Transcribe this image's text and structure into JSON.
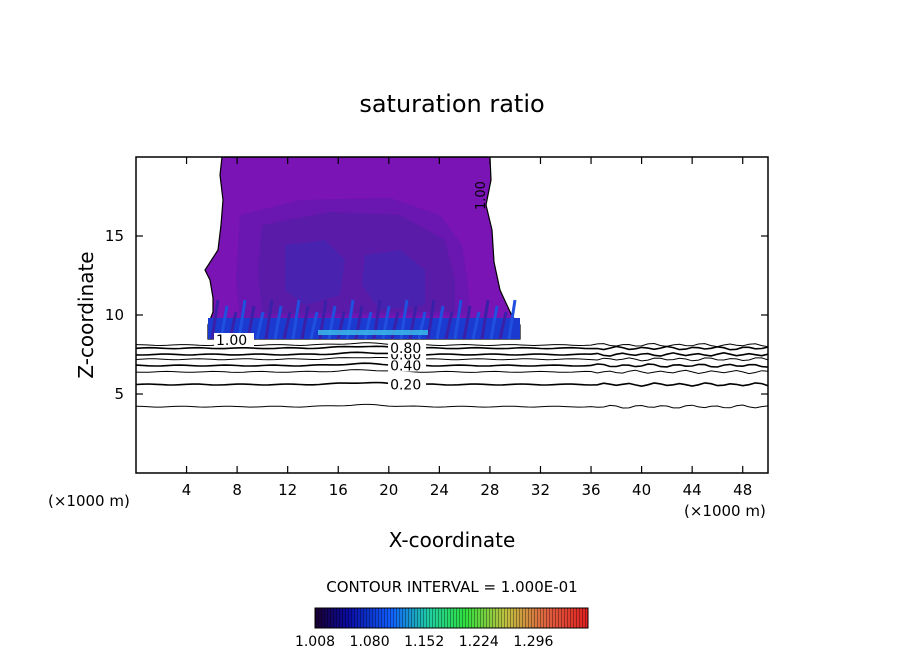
{
  "chart_data": {
    "type": "contour",
    "title": "saturation ratio",
    "xlabel": "X-coordinate",
    "ylabel": "Z-coordinate",
    "x_unit_label": "(×1000 m)",
    "x_unit_label_right": "(×1000 m)",
    "xlim": [
      0,
      50
    ],
    "ylim": [
      0,
      20
    ],
    "x_ticks": [
      4,
      8,
      12,
      16,
      20,
      24,
      28,
      32,
      36,
      40,
      44,
      48
    ],
    "y_ticks": [
      5,
      10,
      15
    ],
    "contour_interval_text": "CONTOUR INTERVAL = 1.000E-01",
    "contour_lines": [
      {
        "level_label": "0.20",
        "z": 5.6
      },
      {
        "level_label": "0.40",
        "z": 6.8
      },
      {
        "level_label": "0.60",
        "z": 7.5
      },
      {
        "level_label": "0.80",
        "z": 7.9
      },
      {
        "level_label": "",
        "z": 4.2
      },
      {
        "level_label": "",
        "z": 6.4
      },
      {
        "level_label": "",
        "z": 7.2
      },
      {
        "level_label": "",
        "z": 8.1
      }
    ],
    "cloud_boundary_label": "1.00",
    "cloud_boundary_label_top": "1.00",
    "cloud_region": {
      "x_range": [
        5.8,
        30.2
      ],
      "z_range": [
        8.5,
        20
      ]
    },
    "colorbar": {
      "tick_labels": [
        "1.008",
        "1.080",
        "1.152",
        "1.224",
        "1.296"
      ],
      "range": [
        1.008,
        1.368
      ]
    },
    "colors": {
      "cloud_main": "#7a14b4",
      "cloud_mid": "#5a1ca8",
      "cloud_inner": "#4a22b0",
      "cloud_base": "#1a4ad8",
      "cloud_base_bright": "#2878f0"
    }
  }
}
